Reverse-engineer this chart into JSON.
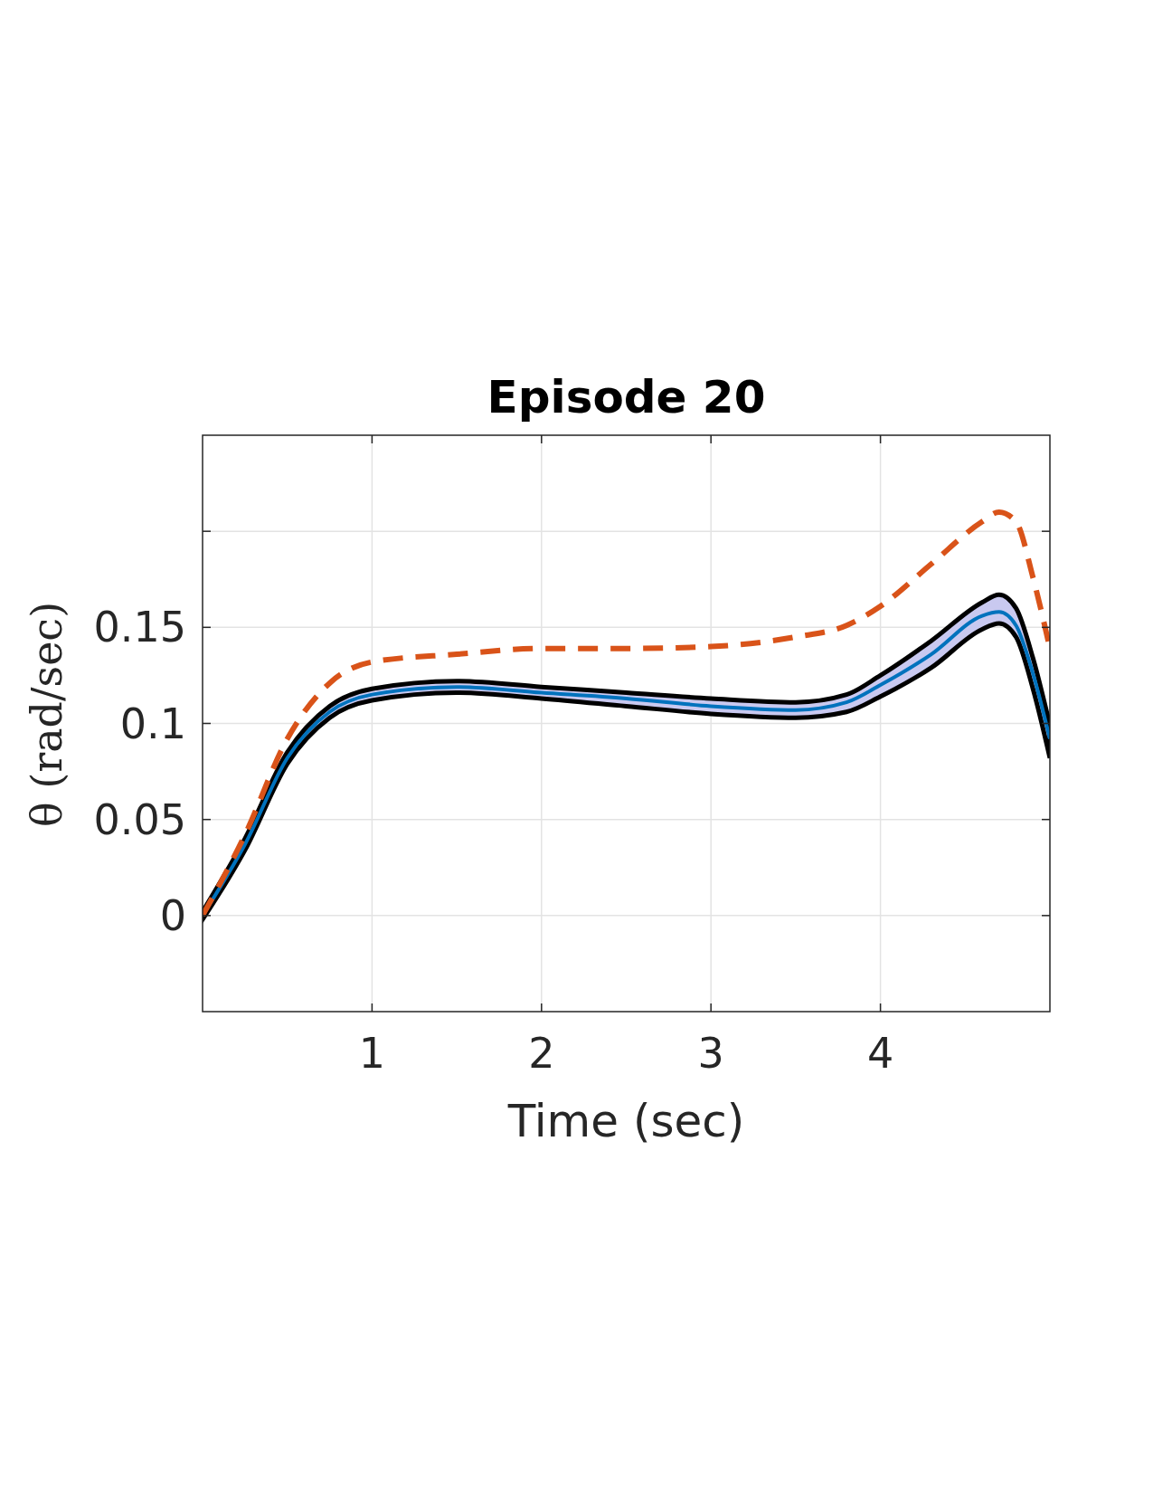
{
  "chart_data": {
    "type": "line",
    "title": "Episode 20",
    "xlabel": "Time (sec)",
    "ylabel": "θ (rad/sec)",
    "xlim": [
      0,
      5
    ],
    "ylim": [
      -0.05,
      0.25
    ],
    "xticks": [
      1,
      2,
      3,
      4
    ],
    "yticks": [
      0,
      0.05,
      0.1,
      0.15,
      {
        "value": 0.2,
        "label": null
      }
    ],
    "grid": true,
    "series": [
      {
        "color": "#0072bd",
        "x": [
          0,
          0.25,
          0.5,
          0.75,
          1,
          1.5,
          2,
          2.5,
          3,
          3.5,
          3.8,
          4,
          4.3,
          4.6,
          4.7,
          4.8,
          4.9,
          5
        ],
        "values": [
          0,
          0.037,
          0.082,
          0.106,
          0.115,
          0.119,
          0.116,
          0.113,
          0.109,
          0.107,
          0.111,
          0.12,
          0.136,
          0.156,
          0.158,
          0.151,
          0.126,
          0.092
        ],
        "lower": [
          -0.002,
          0.034,
          0.079,
          0.103,
          0.112,
          0.116,
          0.113,
          0.109,
          0.105,
          0.103,
          0.106,
          0.114,
          0.129,
          0.149,
          0.152,
          0.145,
          0.118,
          0.082
        ],
        "upper": [
          0.002,
          0.04,
          0.085,
          0.109,
          0.118,
          0.122,
          0.119,
          0.116,
          0.113,
          0.111,
          0.115,
          0.125,
          0.143,
          0.163,
          0.167,
          0.16,
          0.134,
          0.099
        ]
      },
      {
        "color": "#d95319",
        "line_style": "dashed",
        "x": [
          0,
          0.25,
          0.5,
          0.75,
          1,
          1.5,
          2,
          2.5,
          3,
          3.5,
          3.8,
          4,
          4.3,
          4.6,
          4.7,
          4.8,
          4.9,
          5
        ],
        "values": [
          0,
          0.042,
          0.092,
          0.121,
          0.132,
          0.136,
          0.139,
          0.139,
          0.14,
          0.145,
          0.151,
          0.161,
          0.183,
          0.205,
          0.21,
          0.205,
          0.176,
          0.139
        ]
      }
    ]
  }
}
